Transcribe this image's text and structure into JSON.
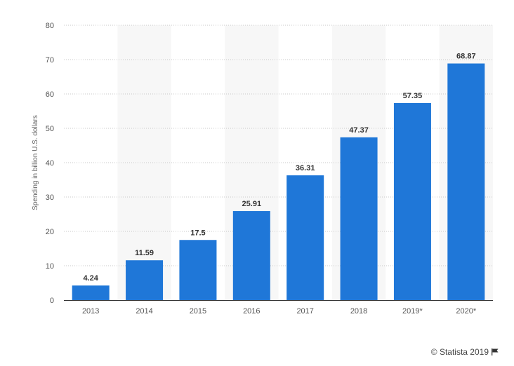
{
  "chart_data": {
    "type": "bar",
    "categories": [
      "2013",
      "2014",
      "2015",
      "2016",
      "2017",
      "2018",
      "2019*",
      "2020*"
    ],
    "values": [
      4.24,
      11.59,
      17.5,
      25.91,
      36.31,
      47.37,
      57.35,
      68.87
    ],
    "data_labels": [
      "4.24",
      "11.59",
      "17.5",
      "25.91",
      "36.31",
      "47.37",
      "57.35",
      "68.87"
    ],
    "title": "",
    "xlabel": "",
    "ylabel": "Spending in billion U.S. dollars",
    "ylim": [
      0,
      80
    ],
    "yticks": [
      0,
      10,
      20,
      30,
      40,
      50,
      60,
      70,
      80
    ],
    "grid": true,
    "bar_color": "#1f77d8",
    "band_color": "#f7f7f7"
  },
  "footer": {
    "copyright": "© Statista 2019",
    "icon": "flag-icon"
  }
}
